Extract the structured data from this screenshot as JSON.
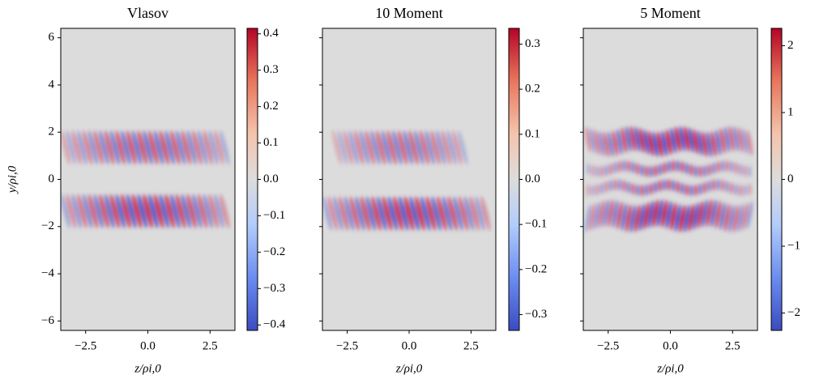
{
  "chart_data": [
    {
      "type": "heatmap",
      "title": "Vlasov",
      "xlabel": "z/ρi,0",
      "ylabel": "y/ρi,0",
      "xlim": [
        -3.5,
        3.5
      ],
      "ylim": [
        -6.4,
        6.4
      ],
      "xticks": [
        {
          "value": -2.5,
          "label": "−2.5"
        },
        {
          "value": 0,
          "label": "0.0"
        },
        2.5
      ],
      "yticks": [
        {
          "value": -6,
          "label": "−6"
        },
        {
          "value": -4,
          "label": "−4"
        },
        {
          "value": -2,
          "label": "−2"
        },
        0,
        2,
        4,
        6
      ],
      "colorbar": {
        "cmap": "coolwarm",
        "lim": [
          -0.415,
          0.415
        ],
        "ticks": [
          {
            "value": -0.4,
            "label": "−0.4"
          },
          {
            "value": -0.3,
            "label": "−0.3"
          },
          {
            "value": -0.2,
            "label": "−0.2"
          },
          {
            "value": -0.1,
            "label": "−0.1"
          },
          {
            "value": 0,
            "label": "0.0"
          },
          0.1,
          0.2,
          0.3,
          0.4
        ]
      }
    },
    {
      "type": "heatmap",
      "title": "10 Moment",
      "xlabel": "z/ρi,0",
      "xlim": [
        -3.5,
        3.5
      ],
      "ylim": [
        -6.4,
        6.4
      ],
      "xticks": [
        {
          "value": -2.5,
          "label": "−2.5"
        },
        {
          "value": 0,
          "label": "0.0"
        },
        2.5
      ],
      "yticks": [
        -6,
        -4,
        -2,
        0,
        2,
        4,
        6
      ],
      "colorbar": {
        "cmap": "coolwarm",
        "lim": [
          -0.335,
          0.335
        ],
        "ticks": [
          {
            "value": -0.3,
            "label": "−0.3"
          },
          {
            "value": -0.2,
            "label": "−0.2"
          },
          {
            "value": -0.1,
            "label": "−0.1"
          },
          {
            "value": 0,
            "label": "0.0"
          },
          0.1,
          0.2,
          0.3
        ]
      }
    },
    {
      "type": "heatmap",
      "title": "5 Moment",
      "xlabel": "z/ρi,0",
      "xlim": [
        -3.5,
        3.5
      ],
      "ylim": [
        -6.4,
        6.4
      ],
      "xticks": [
        {
          "value": -2.5,
          "label": "−2.5"
        },
        {
          "value": 0,
          "label": "0.0"
        },
        2.5
      ],
      "yticks": [
        -6,
        -4,
        -2,
        0,
        2,
        4,
        6
      ],
      "colorbar": {
        "cmap": "coolwarm",
        "lim": [
          -2.26,
          2.26
        ],
        "ticks": [
          {
            "value": -2,
            "label": "−2"
          },
          {
            "value": -1,
            "label": "−1"
          },
          0,
          1,
          2
        ]
      }
    }
  ]
}
